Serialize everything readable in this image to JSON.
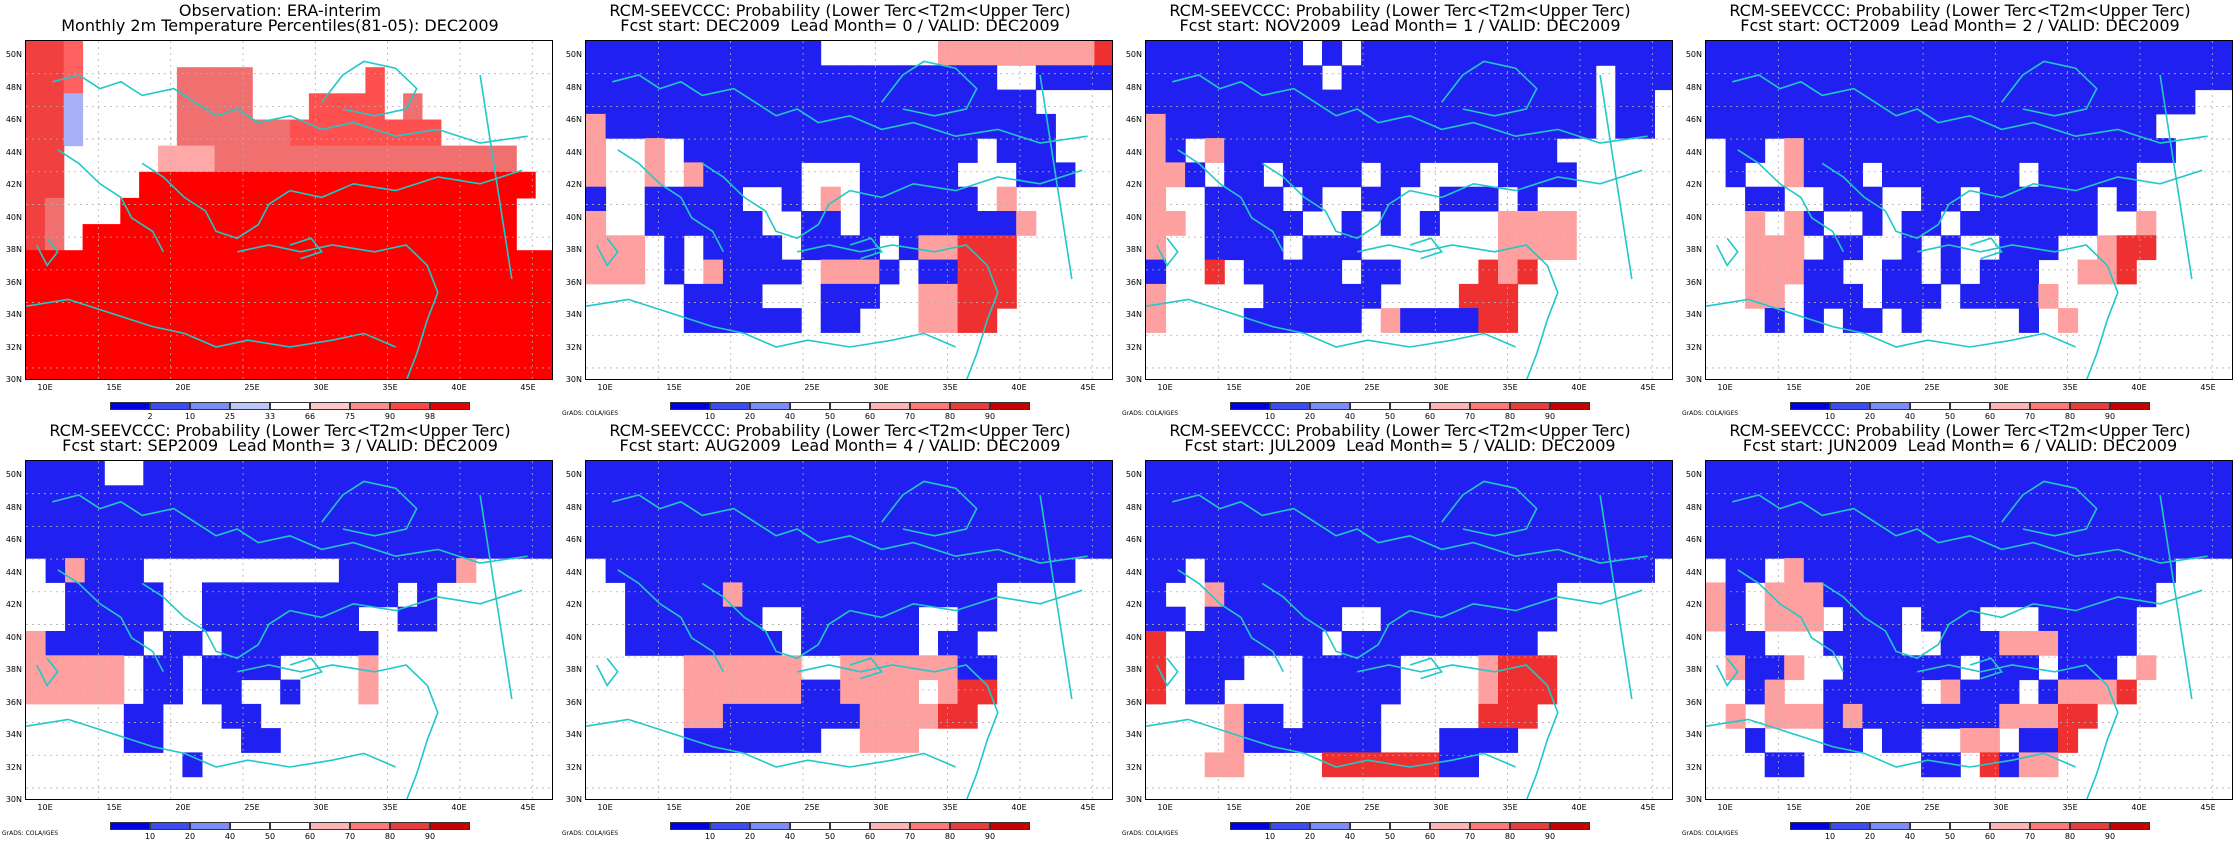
{
  "panels": [
    {
      "title1": "Observation: ERA-interim",
      "title2": "Monthly 2m Temperature Percentiles(81-05): DEC2009",
      "type": "obs",
      "credit": "",
      "grid": [
        "XX7........................",
        "XX7.....5555......3........",
        "XX1.....5555...3333.5......",
        "XX1.....55555533333333.....",
        "XX.....6665555555555555555.",
        "XX....999999999999999999999",
        "X5...999999999999999999999",
        "X5.99999999999999999999999",
        "9999999999999999999999999999",
        "9999999999999999999999999999",
        "9999999999999999999999999999",
        "9999999999999999999999999999",
        "9999999999999999999999999999"
      ]
    },
    {
      "title1": "RCM-SEEVCCC: Probability (Lower Terc<T2m<Upper Terc)",
      "title2": "Fcst start: DEC2009  Lead Month= 0 / VALID: DEC2009",
      "type": "prob",
      "credit": "GrADS: COLA/IGES",
      "grid": [
        "BBBBBBBBBBBB......PPPPPPPPR",
        "BBBBBBBBBBBBBBBBBBBBB..BBBB",
        "BBBBBBBBBBBBBBBBBBBBBBB....",
        "PBBBBBBBBBBBBBBBBBBBBBBB...",
        "P..P.BBBBBBBBBBBBBBB.BBB...",
        "P..P.PBBBBB...BBBBB...BBB..",
        "B..BBBBB..B.P.BBBBBB.P.....",
        "P..BBBBBB..BB.BBBBBBBBP....",
        "PPP.B.BBBB.BBBB.BPPRRR.....",
        "PPP.B.PBBBB.PPPB.BBRRR.....",
        ".....BBBB...BBB..PPRRR.....",
        ".....BBBBBB.BB...PPRR......",
        "...........................",
        "..........................."
      ]
    },
    {
      "title1": "RCM-SEEVCCC: Probability (Lower Terc<T2m<Upper Terc)",
      "title2": "Fcst start: NOV2009  Lead Month= 1 / VALID: DEC2009",
      "type": "prob",
      "credit": "GrADS: COLA/IGES",
      "grid": [
        "BBBBBBBB.B.BBBBBBBBBBBBBBBB",
        "BBBBBBBBB.BBBBBBBBBBBBB.BBB",
        "BBBBBBBBBBBBBBBBBBBBBBB.BB.",
        "PBBBBBBBBBBBBBBBBBBBBBB.BB.",
        "PB.PBBBBBBBBBBBBBBBBB......",
        "PPB.BB.BBBB.BB....BBBB.....",
        "P..BBBB.B..BB..BBB.B.......",
        "PP.BBBBB..B.B.B...PPPP.....",
        "P..BBBB.BBB.......PPPP.....",
        "B..R.BBBBB.BB....RPR.......",
        "P.....BBBBBB....RRR.......",
        "P....BBBBBB.PBBBBRR........",
        "...........................",
        "..........................."
      ]
    },
    {
      "title1": "RCM-SEEVCCC: Probability (Lower Terc<T2m<Upper Terc)",
      "title2": "Fcst start: OCT2009  Lead Month= 2 / VALID: DEC2009",
      "type": "prob",
      "credit": "GrADS: COLA/IGES",
      "grid": [
        "BBBBBBBBBBBBBBBBBBBBBBBBBBB",
        "BBBBBBBBBBBBBBBBBBBBBBBBBBB",
        "BBBBBBBBBBBBBBBBBBBBBBBBB..",
        "BBBBBBBBBBBBBBBBBBBBBBB....",
        ".BB.PBBBBBBBBBBBBBBBBBBB...",
        ".B..PBBB.BBBBBBB.BBBBB.....",
        "..BB..BBB..BB.BBBBBB.B.....",
        "..P.PB..B.BB.BBBBBBB..P....",
        "..PPP.BB..B.B..BBB..PRR....",
        "..PPPBB..BB.B.BBB..PPR.....",
        "..PP.BBB.BBB.BBBBP.........",
        "...B.B.BB.B.....B.P........",
        "...........................",
        "..........................."
      ]
    },
    {
      "title1": "RCM-SEEVCCC: Probability (Lower Terc<T2m<Upper Terc)",
      "title2": "Fcst start: SEP2009  Lead Month= 3 / VALID: DEC2009",
      "type": "prob",
      "credit": "GrADS: COLA/IGES",
      "grid": [
        "BBBB..BBBBBBBBBBBBBBBBBBBBB",
        "BBBBBBBBBBBBBBBBBBBBBBBBBBB",
        "BBBBBBBBBBBBBBBBBBBBBBBBBBB",
        "BBBBBBBBBBBBBBBBBBBBBBBBBBB",
        ".BPBBB..........BBBBBBP....",
        "..BBBBB..BBBBBBBBBB.B......",
        "..BBBBB..BBBBBBBB..BB......",
        "PBBBBB.BB.BBBBBBBB.........",
        "PPPPP.BB.BBBB....P.........",
        "PPPPP.BB.BB..B...P.........",
        ".....BB...BB...............",
        ".....BB....BB..............",
        "........B..................",
        "..........................."
      ]
    },
    {
      "title1": "RCM-SEEVCCC: Probability (Lower Terc<T2m<Upper Terc)",
      "title2": "Fcst start: AUG2009  Lead Month= 4 / VALID: DEC2009",
      "type": "prob",
      "credit": "GrADS: COLA/IGES",
      "grid": [
        "BBBBBBBBBBBBBBBBBBBBBBBBBBB",
        "BBBBBBBBBBBBBBBBBBBBBBBBBBB",
        "BBBBBBBBBBBBBBBBBBBBBBBBBBB",
        "BBBBBBBBBBBBBBBBBBBBBBBBBBB",
        ".BBBBBBBBBBBBBBBBBBBBBBBB..",
        "..BBBBBPBBBBBBBBBBBBB......",
        "..BBBBBBB..BBBBBB..BB......",
        "..BBBBBBBB.BBBBBB.BB.......",
        ".....PPPPPP..PPPPPPBB......",
        ".....PPPPPPBBPPPP.PRR......",
        ".....PPBBBBBBBPPPPRR.......",
        ".....BBBBBBB..PPP..........",
        "...........................",
        "..........................."
      ]
    },
    {
      "title1": "RCM-SEEVCCC: Probability (Lower Terc<T2m<Upper Terc)",
      "title2": "Fcst start: JUL2009  Lead Month= 5 / VALID: DEC2009",
      "type": "prob",
      "credit": "GrADS: COLA/IGES",
      "grid": [
        "BBBBBBBBBBBBBBBBBBBBBBBBBBB",
        "BBBBBBBBBBBBBBBBBBBBBBBBBBB",
        "BBBBBBBBBBBBBBBBBBBBBBBBBBB",
        "BBBBBBBBBBBBBBBBBBBBBBBBBBB",
        "BB.BBBBBBBBBBBBBBBBBBBBBBB.",
        "B..PBBBBBBBBBBBBBBBBB......",
        "BB.BBBBBBB..BBBBBBBBB......",
        "R.BBBBBBB.BBBBBBBBBB.......",
        "R.BBB...BBBBB....PRRR......",
        "R.BB....BBBBB....PRRR......",
        "....PBB.BBBB.....RRR.......",
        "....PBBBBBBB...BBBB........",
        "...PP....RRRRRRBB..........",
        "..........................."
      ]
    },
    {
      "title1": "RCM-SEEVCCC: Probability (Lower Terc<T2m<Upper Terc)",
      "title2": "Fcst start: JUN2009  Lead Month= 6 / VALID: DEC2009",
      "type": "prob",
      "credit": "GrADS: COLA/IGES",
      "grid": [
        "BBBBBBBBBBBBBBBBBBBBBBBBBBB",
        "BBBBBBBBBBBBBBBBBBBBBBBBBBB",
        "BBBBBBBBBBBBBBBBBBBBBBBBBBB",
        "BBBBBBBBBBBBBBBBBBBBBBBBBBB",
        ".BB.PBBBBBBBBBBBBBBBBBBB...",
        "PB.PPPBBBBBBBBBBBBBBBBB....",
        "PB.PPP.BBB.BBB...BBBBB.....",
        ".BB...BBBB..BBBPPPBBBB.....",
        ".PBBP..BBBBBB.BBB.BBB.P....",
        "..BP..BBBBB.PBBB.BPPPR.....",
        ".P.PPPBPBBBBBBBPPPRR.......",
        "..B...BB.BB..PP.BBR........",
        "...BB......BB.RBPP.........",
        "..........................."
      ]
    }
  ],
  "axes": {
    "y_labels": [
      "50N",
      "48N",
      "46N",
      "44N",
      "42N",
      "40N",
      "38N",
      "36N",
      "34N",
      "32N",
      "30N"
    ],
    "x_labels": [
      "10E",
      "15E",
      "20E",
      "25E",
      "30E",
      "35E",
      "40E",
      "45E"
    ]
  },
  "colorbars": {
    "obs": {
      "labels": [
        "2",
        "10",
        "25",
        "33",
        "66",
        "75",
        "90",
        "98"
      ],
      "colors": [
        "#0000e8",
        "#3c4cf0",
        "#7c8cf6",
        "#bcc8fa",
        "#ffffff",
        "#ffc8c8",
        "#ff8c8c",
        "#ff4646",
        "#e60000"
      ]
    },
    "prob": {
      "labels": [
        "10",
        "20",
        "40",
        "50",
        "60",
        "70",
        "80",
        "90"
      ],
      "colors": [
        "#0000e8",
        "#3c4cf0",
        "#7c8cf6",
        "#ffffff",
        "#ffffff",
        "#ffb4b4",
        "#ff7878",
        "#e63c3c",
        "#c80000"
      ]
    }
  },
  "cell_colors": {
    "B": "#2020f0",
    "P": "#ffa0a0",
    "R": "#ee3030",
    "X": "#f04040",
    "9": "#ff0000",
    "7": "#ff6060",
    "6": "#ffa8a8",
    "5": "#f07070",
    "3": "#ff5050",
    "1": "#a8b0f8",
    ".": "#ffffff"
  },
  "colors": {
    "coast": "#20c8c8",
    "grid": "#b0b0b0"
  }
}
